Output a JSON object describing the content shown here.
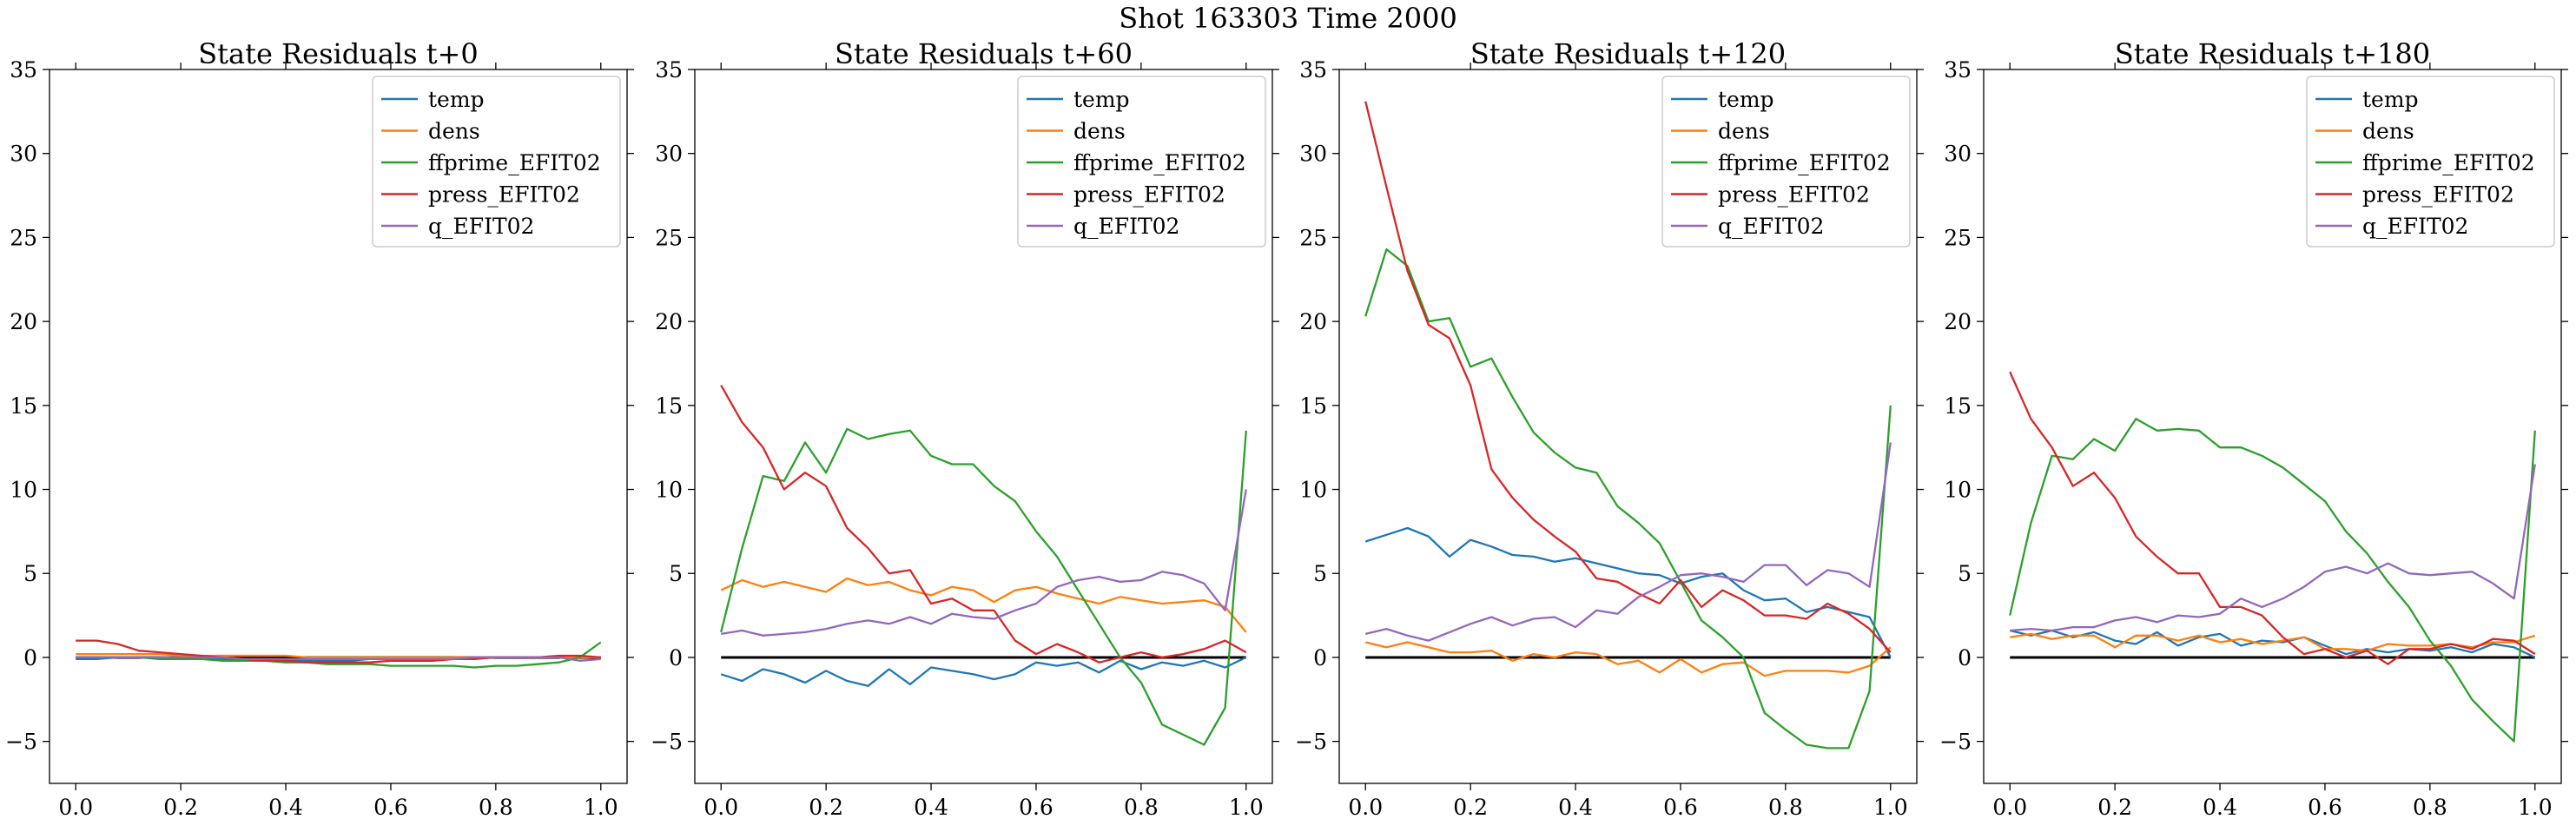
{
  "figure": {
    "title": "Shot 163303   Time 2000"
  },
  "legend_colors": {
    "temp": "#1f77b4",
    "dens": "#ff7f0e",
    "ffprime_EFIT02": "#2ca02c",
    "press_EFIT02": "#d62728",
    "q_EFIT02": "#9467bd"
  },
  "chart_data": [
    {
      "type": "line",
      "title": "State Residuals t+0",
      "xlabel": "",
      "ylabel": "",
      "xlim": [
        -0.05,
        1.05
      ],
      "ylim": [
        -7.5,
        35
      ],
      "xticks": [
        "0.0",
        "0.2",
        "0.4",
        "0.6",
        "0.8",
        "1.0"
      ],
      "yticks": [
        "−5",
        "0",
        "5",
        "10",
        "15",
        "20",
        "25",
        "30",
        "35"
      ],
      "legend": "top-right",
      "grid": false,
      "x": [
        0.0,
        0.04,
        0.08,
        0.12,
        0.16,
        0.2,
        0.24,
        0.28,
        0.32,
        0.36,
        0.4,
        0.44,
        0.48,
        0.52,
        0.56,
        0.6,
        0.64,
        0.68,
        0.72,
        0.76,
        0.8,
        0.84,
        0.88,
        0.92,
        0.96,
        1.0
      ],
      "series": [
        {
          "name": "temp",
          "values": [
            -0.1,
            -0.1,
            0.0,
            0.0,
            0.0,
            0.0,
            -0.1,
            -0.1,
            -0.1,
            -0.1,
            -0.2,
            -0.2,
            -0.2,
            -0.2,
            -0.1,
            -0.1,
            -0.1,
            -0.1,
            0.0,
            0.0,
            0.0,
            0.0,
            0.0,
            0.0,
            0.0,
            0.0
          ]
        },
        {
          "name": "dens",
          "values": [
            0.2,
            0.2,
            0.2,
            0.2,
            0.2,
            0.1,
            0.1,
            0.1,
            0.1,
            0.1,
            0.1,
            0.0,
            0.0,
            0.0,
            0.0,
            0.0,
            0.0,
            0.0,
            0.0,
            0.0,
            0.0,
            0.0,
            0.0,
            0.0,
            0.0,
            0.0
          ]
        },
        {
          "name": "ffprime_EFIT02",
          "values": [
            0.0,
            0.0,
            0.0,
            0.0,
            -0.1,
            -0.1,
            -0.1,
            -0.2,
            -0.2,
            -0.2,
            -0.3,
            -0.3,
            -0.4,
            -0.4,
            -0.4,
            -0.5,
            -0.5,
            -0.5,
            -0.5,
            -0.6,
            -0.5,
            -0.5,
            -0.4,
            -0.3,
            0.0,
            0.9
          ]
        },
        {
          "name": "press_EFIT02",
          "values": [
            1.0,
            1.0,
            0.8,
            0.4,
            0.3,
            0.2,
            0.1,
            0.0,
            -0.1,
            -0.2,
            -0.2,
            -0.3,
            -0.3,
            -0.3,
            -0.3,
            -0.2,
            -0.2,
            -0.2,
            -0.1,
            -0.1,
            0.0,
            0.0,
            0.0,
            0.1,
            0.1,
            0.0
          ]
        },
        {
          "name": "q_EFIT02",
          "values": [
            0.0,
            0.0,
            0.0,
            0.0,
            0.0,
            0.0,
            0.0,
            0.0,
            -0.1,
            -0.1,
            -0.1,
            -0.1,
            -0.1,
            -0.1,
            -0.1,
            -0.1,
            -0.1,
            -0.1,
            -0.1,
            0.0,
            0.0,
            0.0,
            0.0,
            0.0,
            -0.2,
            -0.1
          ]
        }
      ]
    },
    {
      "type": "line",
      "title": "State Residuals t+60",
      "xlabel": "",
      "ylabel": "",
      "xlim": [
        -0.05,
        1.05
      ],
      "ylim": [
        -7.5,
        35
      ],
      "xticks": [
        "0.0",
        "0.2",
        "0.4",
        "0.6",
        "0.8",
        "1.0"
      ],
      "yticks": [
        "−5",
        "0",
        "5",
        "10",
        "15",
        "20",
        "25",
        "30",
        "35"
      ],
      "legend": "top-right",
      "grid": false,
      "x": [
        0.0,
        0.04,
        0.08,
        0.12,
        0.16,
        0.2,
        0.24,
        0.28,
        0.32,
        0.36,
        0.4,
        0.44,
        0.48,
        0.52,
        0.56,
        0.6,
        0.64,
        0.68,
        0.72,
        0.76,
        0.8,
        0.84,
        0.88,
        0.92,
        0.96,
        1.0
      ],
      "series": [
        {
          "name": "temp",
          "values": [
            -1.0,
            -1.4,
            -0.7,
            -1.0,
            -1.5,
            -0.8,
            -1.4,
            -1.7,
            -0.7,
            -1.6,
            -0.6,
            -0.8,
            -1.0,
            -1.3,
            -1.0,
            -0.3,
            -0.5,
            -0.3,
            -0.9,
            -0.2,
            -0.7,
            -0.3,
            -0.5,
            -0.2,
            -0.6,
            0.0
          ]
        },
        {
          "name": "dens",
          "values": [
            4.0,
            4.6,
            4.2,
            4.5,
            4.2,
            3.9,
            4.7,
            4.3,
            4.5,
            4.0,
            3.7,
            4.2,
            4.0,
            3.3,
            4.0,
            4.2,
            3.8,
            3.5,
            3.2,
            3.6,
            3.4,
            3.2,
            3.3,
            3.4,
            3.0,
            1.5
          ]
        },
        {
          "name": "ffprime_EFIT02",
          "values": [
            1.5,
            6.5,
            10.8,
            10.5,
            12.8,
            11.0,
            13.6,
            13.0,
            13.3,
            13.5,
            12.0,
            11.5,
            11.5,
            10.2,
            9.3,
            7.5,
            6.0,
            4.0,
            2.0,
            0.0,
            -1.5,
            -4.0,
            -4.6,
            -5.2,
            -3.0,
            13.5
          ]
        },
        {
          "name": "press_EFIT02",
          "values": [
            16.2,
            14.0,
            12.5,
            10.0,
            11.0,
            10.2,
            7.7,
            6.5,
            5.0,
            5.2,
            3.2,
            3.5,
            2.8,
            2.8,
            1.0,
            0.2,
            0.8,
            0.3,
            -0.3,
            0.0,
            0.3,
            0.0,
            0.2,
            0.5,
            1.0,
            0.3
          ]
        },
        {
          "name": "q_EFIT02",
          "values": [
            1.4,
            1.6,
            1.3,
            1.4,
            1.5,
            1.7,
            2.0,
            2.2,
            2.0,
            2.4,
            2.0,
            2.6,
            2.4,
            2.3,
            2.8,
            3.2,
            4.2,
            4.6,
            4.8,
            4.5,
            4.6,
            5.1,
            4.9,
            4.4,
            2.8,
            10.0
          ]
        }
      ]
    },
    {
      "type": "line",
      "title": "State Residuals t+120",
      "xlabel": "",
      "ylabel": "",
      "xlim": [
        -0.05,
        1.05
      ],
      "ylim": [
        -7.5,
        35
      ],
      "xticks": [
        "0.0",
        "0.2",
        "0.4",
        "0.6",
        "0.8",
        "1.0"
      ],
      "yticks": [
        "−5",
        "0",
        "5",
        "10",
        "15",
        "20",
        "25",
        "30",
        "35"
      ],
      "legend": "top-right",
      "grid": false,
      "x": [
        0.0,
        0.04,
        0.08,
        0.12,
        0.16,
        0.2,
        0.24,
        0.28,
        0.32,
        0.36,
        0.4,
        0.44,
        0.48,
        0.52,
        0.56,
        0.6,
        0.64,
        0.68,
        0.72,
        0.76,
        0.8,
        0.84,
        0.88,
        0.92,
        0.96,
        1.0
      ],
      "series": [
        {
          "name": "temp",
          "values": [
            6.9,
            7.3,
            7.7,
            7.2,
            6.0,
            7.0,
            6.6,
            6.1,
            6.0,
            5.7,
            5.9,
            5.6,
            5.3,
            5.0,
            4.9,
            4.4,
            4.8,
            5.0,
            4.0,
            3.4,
            3.5,
            2.7,
            3.0,
            2.7,
            2.4,
            0.0
          ]
        },
        {
          "name": "dens",
          "values": [
            0.9,
            0.6,
            0.9,
            0.6,
            0.3,
            0.3,
            0.4,
            -0.2,
            0.2,
            0.0,
            0.3,
            0.2,
            -0.4,
            -0.2,
            -0.9,
            -0.1,
            -0.9,
            -0.4,
            -0.3,
            -1.1,
            -0.8,
            -0.8,
            -0.8,
            -0.9,
            -0.5,
            0.6
          ]
        },
        {
          "name": "ffprime_EFIT02",
          "values": [
            20.3,
            24.3,
            23.3,
            20.0,
            20.2,
            17.3,
            17.8,
            15.5,
            13.4,
            12.2,
            11.3,
            11.0,
            9.0,
            8.0,
            6.8,
            4.5,
            2.2,
            1.2,
            0.0,
            -3.3,
            -4.3,
            -5.2,
            -5.4,
            -5.4,
            -2.0,
            15.0
          ]
        },
        {
          "name": "press_EFIT02",
          "values": [
            33.1,
            28.0,
            23.0,
            19.8,
            19.0,
            16.2,
            11.2,
            9.5,
            8.2,
            7.2,
            6.3,
            4.7,
            4.5,
            3.8,
            3.2,
            4.6,
            3.0,
            4.0,
            3.4,
            2.5,
            2.5,
            2.3,
            3.2,
            2.6,
            1.7,
            0.3
          ]
        },
        {
          "name": "q_EFIT02",
          "values": [
            1.4,
            1.7,
            1.3,
            1.0,
            1.5,
            2.0,
            2.4,
            1.9,
            2.3,
            2.4,
            1.8,
            2.8,
            2.6,
            3.6,
            4.2,
            4.9,
            5.0,
            4.8,
            4.5,
            5.5,
            5.5,
            4.3,
            5.2,
            5.0,
            4.2,
            12.8
          ]
        }
      ]
    },
    {
      "type": "line",
      "title": "State Residuals t+180",
      "xlabel": "",
      "ylabel": "",
      "xlim": [
        -0.05,
        1.05
      ],
      "ylim": [
        -7.5,
        35
      ],
      "xticks": [
        "0.0",
        "0.2",
        "0.4",
        "0.6",
        "0.8",
        "1.0"
      ],
      "yticks": [
        "−5",
        "0",
        "5",
        "10",
        "15",
        "20",
        "25",
        "30",
        "35"
      ],
      "legend": "top-right",
      "grid": false,
      "x": [
        0.0,
        0.04,
        0.08,
        0.12,
        0.16,
        0.2,
        0.24,
        0.28,
        0.32,
        0.36,
        0.4,
        0.44,
        0.48,
        0.52,
        0.56,
        0.6,
        0.64,
        0.68,
        0.72,
        0.76,
        0.8,
        0.84,
        0.88,
        0.92,
        0.96,
        1.0
      ],
      "series": [
        {
          "name": "temp",
          "values": [
            1.6,
            1.3,
            1.6,
            1.2,
            1.5,
            1.0,
            0.8,
            1.5,
            0.7,
            1.2,
            1.4,
            0.7,
            1.0,
            0.9,
            1.2,
            0.7,
            0.2,
            0.5,
            0.3,
            0.5,
            0.4,
            0.6,
            0.3,
            0.8,
            0.6,
            0.0
          ]
        },
        {
          "name": "dens",
          "values": [
            1.2,
            1.4,
            1.1,
            1.3,
            1.3,
            0.6,
            1.3,
            1.3,
            1.0,
            1.3,
            0.9,
            1.1,
            0.8,
            1.0,
            1.2,
            0.5,
            0.5,
            0.4,
            0.8,
            0.7,
            0.7,
            0.8,
            0.6,
            0.9,
            0.9,
            1.3
          ]
        },
        {
          "name": "ffprime_EFIT02",
          "values": [
            2.5,
            8.0,
            12.0,
            11.8,
            13.0,
            12.3,
            14.2,
            13.5,
            13.6,
            13.5,
            12.5,
            12.5,
            12.0,
            11.3,
            10.3,
            9.3,
            7.5,
            6.2,
            4.5,
            3.0,
            1.0,
            -0.5,
            -2.5,
            -3.8,
            -5.0,
            13.5
          ]
        },
        {
          "name": "press_EFIT02",
          "values": [
            17.0,
            14.2,
            12.5,
            10.2,
            11.0,
            9.5,
            7.2,
            6.0,
            5.0,
            5.0,
            3.0,
            3.0,
            2.5,
            1.2,
            0.2,
            0.5,
            0.0,
            0.4,
            -0.4,
            0.5,
            0.5,
            0.8,
            0.5,
            1.1,
            1.0,
            0.2
          ]
        },
        {
          "name": "q_EFIT02",
          "values": [
            1.6,
            1.7,
            1.6,
            1.8,
            1.8,
            2.2,
            2.4,
            2.1,
            2.5,
            2.4,
            2.6,
            3.5,
            3.0,
            3.5,
            4.2,
            5.1,
            5.4,
            5.0,
            5.6,
            5.0,
            4.9,
            5.0,
            5.1,
            4.4,
            3.5,
            11.5
          ]
        }
      ]
    }
  ]
}
